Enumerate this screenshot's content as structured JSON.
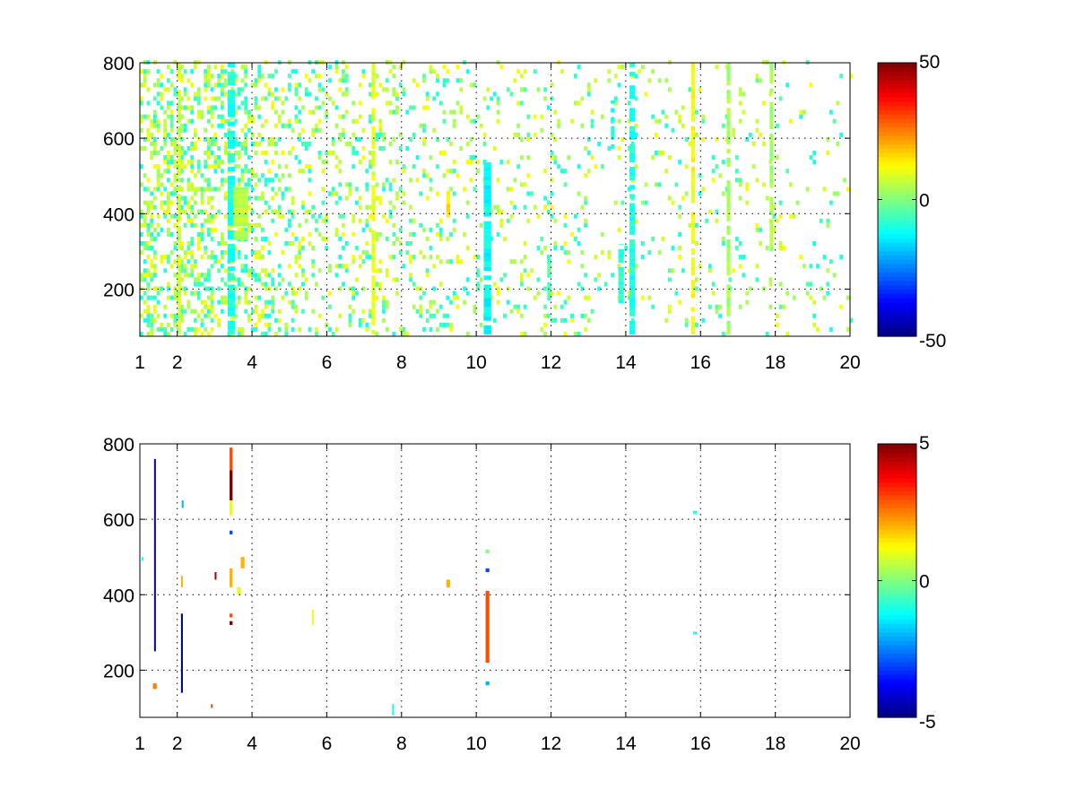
{
  "chart_data": [
    {
      "type": "heatmap",
      "title": "",
      "xlabel": "",
      "ylabel": "",
      "xlim": [
        1,
        20
      ],
      "ylim": [
        75,
        800
      ],
      "xticks": [
        1,
        2,
        4,
        6,
        8,
        10,
        12,
        14,
        16,
        18,
        20
      ],
      "xtick_labels": [
        "1",
        "2",
        "4",
        "6",
        "8",
        "10",
        "12",
        "14",
        "16",
        "18",
        "20"
      ],
      "yticks": [
        200,
        400,
        600,
        800
      ],
      "ytick_labels": [
        "200",
        "400",
        "600",
        "800"
      ],
      "grid": true,
      "colormap": "jet",
      "clim": [
        -50,
        50
      ],
      "colorbar_ticks": [
        -50,
        0,
        50
      ],
      "colorbar_labels": [
        "-50",
        "0",
        "50"
      ],
      "background": "#ffffff",
      "density_profile": [
        {
          "x": 1.0,
          "density": 0.42
        },
        {
          "x": 2.0,
          "density": 0.4
        },
        {
          "x": 3.0,
          "density": 0.36
        },
        {
          "x": 4.0,
          "density": 0.28
        },
        {
          "x": 6.0,
          "density": 0.2
        },
        {
          "x": 8.0,
          "density": 0.16
        },
        {
          "x": 10.0,
          "density": 0.12
        },
        {
          "x": 12.0,
          "density": 0.1
        },
        {
          "x": 14.0,
          "density": 0.08
        },
        {
          "x": 16.0,
          "density": 0.07
        },
        {
          "x": 18.0,
          "density": 0.06
        },
        {
          "x": 20.0,
          "density": 0.05
        }
      ],
      "features": [
        {
          "x0": 3.35,
          "x1": 3.55,
          "y0": 80,
          "y1": 800,
          "value": -10
        },
        {
          "x0": 3.5,
          "x1": 3.9,
          "y0": 330,
          "y1": 470,
          "value": 6
        },
        {
          "x0": 2.02,
          "x1": 2.1,
          "y0": 80,
          "y1": 800,
          "value": 8
        },
        {
          "x0": 10.2,
          "x1": 10.4,
          "y0": 80,
          "y1": 540,
          "value": -12
        },
        {
          "x0": 9.2,
          "x1": 9.3,
          "y0": 390,
          "y1": 460,
          "value": 15
        },
        {
          "x0": 11.9,
          "x1": 12.0,
          "y0": 170,
          "y1": 280,
          "value": -5
        },
        {
          "x0": 13.6,
          "x1": 13.7,
          "y0": 560,
          "y1": 700,
          "value": -10
        },
        {
          "x0": 13.8,
          "x1": 13.95,
          "y0": 150,
          "y1": 320,
          "value": -8
        },
        {
          "x0": 14.1,
          "x1": 14.25,
          "y0": 80,
          "y1": 800,
          "value": -10
        },
        {
          "x0": 15.75,
          "x1": 15.85,
          "y0": 80,
          "y1": 800,
          "value": 12
        },
        {
          "x0": 16.7,
          "x1": 16.8,
          "y0": 80,
          "y1": 800,
          "value": 4
        },
        {
          "x0": 17.85,
          "x1": 17.95,
          "y0": 300,
          "y1": 800,
          "value": 4
        },
        {
          "x0": 7.2,
          "x1": 7.3,
          "y0": 80,
          "y1": 800,
          "value": 10
        }
      ]
    },
    {
      "type": "heatmap",
      "title": "",
      "xlabel": "",
      "ylabel": "",
      "xlim": [
        1,
        20
      ],
      "ylim": [
        75,
        800
      ],
      "xticks": [
        1,
        2,
        4,
        6,
        8,
        10,
        12,
        14,
        16,
        18,
        20
      ],
      "xtick_labels": [
        "1",
        "2",
        "4",
        "6",
        "8",
        "10",
        "12",
        "14",
        "16",
        "18",
        "20"
      ],
      "yticks": [
        200,
        400,
        600,
        800
      ],
      "ytick_labels": [
        "200",
        "400",
        "600",
        "800"
      ],
      "grid": true,
      "colormap": "jet",
      "clim": [
        -5,
        5
      ],
      "colorbar_ticks": [
        -5,
        0,
        5
      ],
      "colorbar_labels": [
        "-5",
        "0",
        "5"
      ],
      "background": "#ffffff",
      "cells": [
        {
          "x0": 1.38,
          "x1": 1.42,
          "y0": 250,
          "y1": 760,
          "value": -4.5
        },
        {
          "x0": 1.35,
          "x1": 1.45,
          "y0": 150,
          "y1": 165,
          "value": 2.5
        },
        {
          "x0": 1.05,
          "x1": 1.1,
          "y0": 490,
          "y1": 500,
          "value": -1
        },
        {
          "x0": 2.1,
          "x1": 2.15,
          "y0": 140,
          "y1": 350,
          "value": -5
        },
        {
          "x0": 2.1,
          "x1": 2.15,
          "y0": 420,
          "y1": 450,
          "value": 2
        },
        {
          "x0": 2.12,
          "x1": 2.16,
          "y0": 630,
          "y1": 650,
          "value": -2
        },
        {
          "x0": 2.9,
          "x1": 2.95,
          "y0": 100,
          "y1": 110,
          "value": 3
        },
        {
          "x0": 3.0,
          "x1": 3.05,
          "y0": 440,
          "y1": 460,
          "value": 4.5
        },
        {
          "x0": 3.4,
          "x1": 3.48,
          "y0": 650,
          "y1": 730,
          "value": 5
        },
        {
          "x0": 3.4,
          "x1": 3.48,
          "y0": 730,
          "y1": 790,
          "value": 3
        },
        {
          "x0": 3.4,
          "x1": 3.48,
          "y0": 610,
          "y1": 650,
          "value": 1
        },
        {
          "x0": 3.4,
          "x1": 3.48,
          "y0": 560,
          "y1": 570,
          "value": -3
        },
        {
          "x0": 3.4,
          "x1": 3.48,
          "y0": 420,
          "y1": 470,
          "value": 2
        },
        {
          "x0": 3.4,
          "x1": 3.48,
          "y0": 320,
          "y1": 330,
          "value": 5
        },
        {
          "x0": 3.4,
          "x1": 3.48,
          "y0": 340,
          "y1": 350,
          "value": 3
        },
        {
          "x0": 3.6,
          "x1": 3.7,
          "y0": 400,
          "y1": 420,
          "value": 1
        },
        {
          "x0": 3.7,
          "x1": 3.8,
          "y0": 470,
          "y1": 500,
          "value": 2
        },
        {
          "x0": 5.6,
          "x1": 5.65,
          "y0": 320,
          "y1": 360,
          "value": 1
        },
        {
          "x0": 7.75,
          "x1": 7.8,
          "y0": 80,
          "y1": 110,
          "value": -1
        },
        {
          "x0": 9.2,
          "x1": 9.3,
          "y0": 420,
          "y1": 440,
          "value": 2
        },
        {
          "x0": 10.25,
          "x1": 10.35,
          "y0": 220,
          "y1": 410,
          "value": 3
        },
        {
          "x0": 10.25,
          "x1": 10.35,
          "y0": 160,
          "y1": 170,
          "value": -2
        },
        {
          "x0": 10.25,
          "x1": 10.35,
          "y0": 460,
          "y1": 470,
          "value": -3
        },
        {
          "x0": 10.25,
          "x1": 10.35,
          "y0": 510,
          "y1": 520,
          "value": 0
        },
        {
          "x0": 15.8,
          "x1": 15.9,
          "y0": 295,
          "y1": 302,
          "value": -1
        },
        {
          "x0": 15.8,
          "x1": 15.9,
          "y0": 615,
          "y1": 622,
          "value": -1
        }
      ]
    }
  ]
}
